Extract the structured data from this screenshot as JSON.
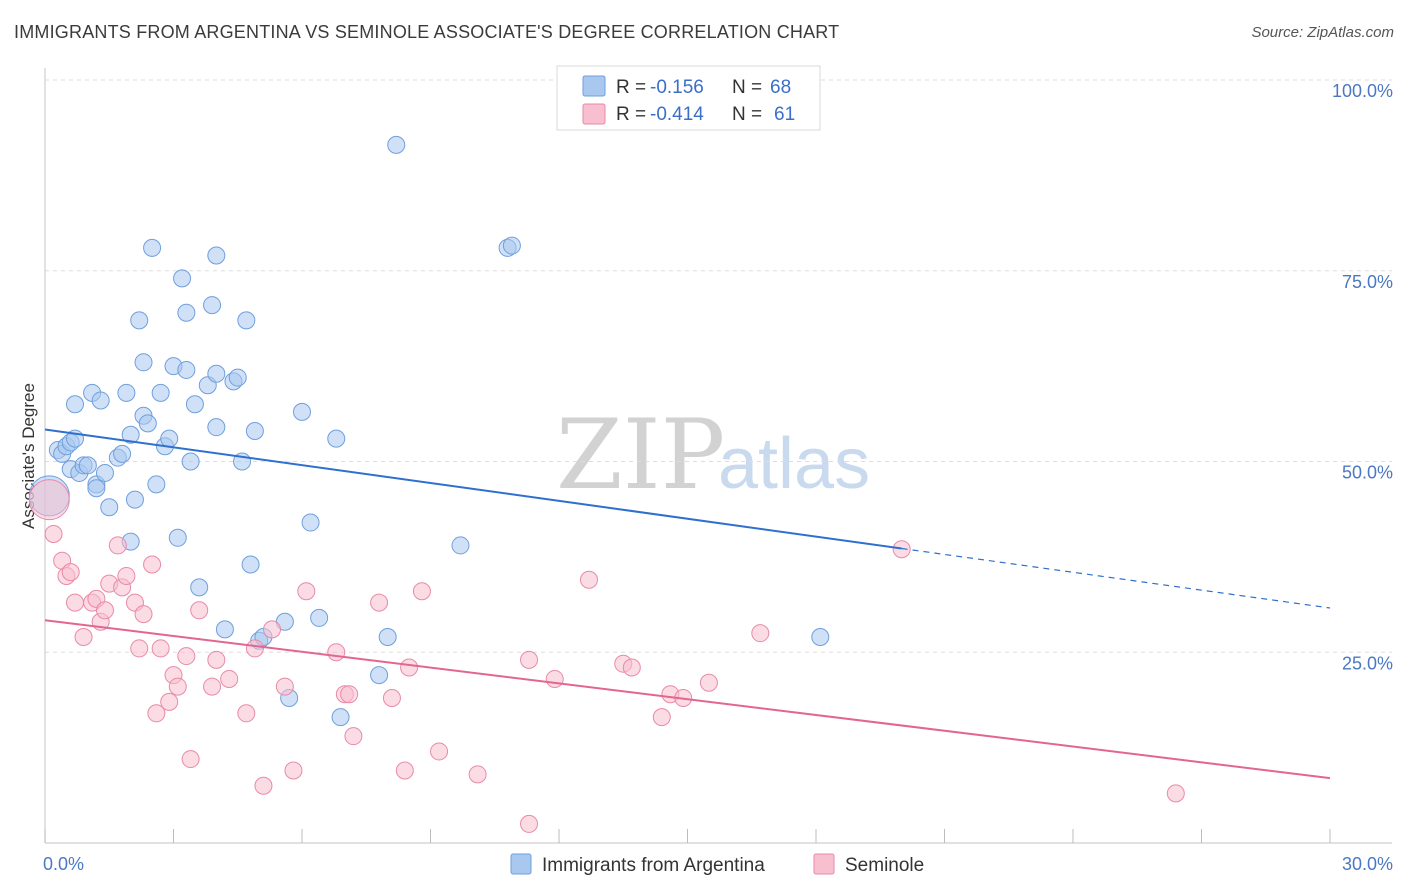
{
  "header": {
    "title": "IMMIGRANTS FROM ARGENTINA VS SEMINOLE ASSOCIATE'S DEGREE CORRELATION CHART",
    "source": "Source: ZipAtlas.com"
  },
  "watermark": {
    "zip": "ZIP",
    "atlas": "atlas"
  },
  "colors": {
    "blue_fill": "#a9c8f0",
    "blue_stroke": "#6f9fdc",
    "blue_line": "#2f6fce",
    "pink_fill": "#f7bfd0",
    "pink_stroke": "#e88aa8",
    "pink_line": "#e2668f",
    "grid": "#dddddd",
    "axis_text": "#4a78c2"
  },
  "legend": {
    "rows": [
      {
        "r_label": "R =",
        "r_value": "-0.156",
        "n_label": "N =",
        "n_value": "68"
      },
      {
        "r_label": "R =",
        "r_value": "-0.414",
        "n_label": "N =",
        "n_value": "61"
      }
    ]
  },
  "bottom_legend": {
    "series1": "Immigrants from Argentina",
    "series2": "Seminole"
  },
  "chart_data": {
    "type": "scatter",
    "title": "IMMIGRANTS FROM ARGENTINA VS SEMINOLE ASSOCIATE'S DEGREE CORRELATION CHART",
    "xlabel": "",
    "ylabel": "Associate's Degree",
    "xlim": [
      0,
      30
    ],
    "ylim": [
      0,
      100
    ],
    "x_tick_labels": [
      "0.0%",
      "30.0%"
    ],
    "y_ticks": [
      25,
      50,
      75,
      100
    ],
    "y_tick_labels": [
      "25.0%",
      "50.0%",
      "75.0%",
      "100.0%"
    ],
    "grid": true,
    "series": [
      {
        "name": "Immigrants from Argentina",
        "R": -0.156,
        "N": 68,
        "trend": {
          "x0": 0,
          "y0": 54.2,
          "x1": 30,
          "y1": 30.8,
          "solid_until": 20
        },
        "points": [
          [
            0.1,
            45.5,
            "big"
          ],
          [
            0.3,
            51.5
          ],
          [
            0.4,
            51.0
          ],
          [
            0.5,
            52.0
          ],
          [
            0.6,
            52.5
          ],
          [
            0.6,
            49.0
          ],
          [
            0.7,
            53.0
          ],
          [
            0.7,
            57.5
          ],
          [
            0.8,
            48.5
          ],
          [
            0.9,
            49.5
          ],
          [
            1.0,
            49.5
          ],
          [
            1.1,
            59.0
          ],
          [
            1.2,
            47.0
          ],
          [
            1.2,
            46.5
          ],
          [
            1.3,
            58.0
          ],
          [
            1.4,
            48.5
          ],
          [
            1.5,
            44.0
          ],
          [
            1.7,
            50.5
          ],
          [
            1.8,
            51.0
          ],
          [
            1.9,
            59.0
          ],
          [
            2.0,
            53.5
          ],
          [
            2.0,
            39.5
          ],
          [
            2.1,
            45.0
          ],
          [
            2.2,
            68.5
          ],
          [
            2.3,
            63.0
          ],
          [
            2.3,
            56.0
          ],
          [
            2.4,
            55.0
          ],
          [
            2.5,
            78.0
          ],
          [
            2.6,
            47.0
          ],
          [
            2.7,
            59.0
          ],
          [
            2.8,
            52.0
          ],
          [
            2.9,
            53.0
          ],
          [
            3.0,
            62.5
          ],
          [
            3.1,
            40.0
          ],
          [
            3.2,
            74.0
          ],
          [
            3.3,
            62.0
          ],
          [
            3.3,
            69.5
          ],
          [
            3.4,
            50.0
          ],
          [
            3.5,
            57.5
          ],
          [
            3.6,
            33.5
          ],
          [
            3.8,
            60.0
          ],
          [
            3.9,
            70.5
          ],
          [
            4.0,
            54.5
          ],
          [
            4.0,
            61.5
          ],
          [
            4.0,
            77.0
          ],
          [
            4.2,
            28.0
          ],
          [
            4.4,
            60.5
          ],
          [
            4.5,
            61.0
          ],
          [
            4.6,
            50.0
          ],
          [
            4.7,
            68.5
          ],
          [
            4.8,
            36.5
          ],
          [
            4.9,
            54.0
          ],
          [
            5.0,
            26.5
          ],
          [
            5.1,
            27.0
          ],
          [
            5.6,
            29.0
          ],
          [
            5.7,
            19.0
          ],
          [
            6.0,
            56.5
          ],
          [
            6.2,
            42.0
          ],
          [
            6.4,
            29.5
          ],
          [
            6.9,
            16.5
          ],
          [
            6.8,
            53.0
          ],
          [
            7.8,
            22.0
          ],
          [
            8.0,
            27.0
          ],
          [
            8.2,
            91.5
          ],
          [
            9.7,
            39.0
          ],
          [
            10.8,
            78.0
          ],
          [
            10.9,
            78.3
          ],
          [
            18.1,
            27.0
          ]
        ]
      },
      {
        "name": "Seminole",
        "R": -0.414,
        "N": 61,
        "trend": {
          "x0": 0,
          "y0": 29.2,
          "x1": 30,
          "y1": 8.5
        },
        "points": [
          [
            0.1,
            45.0,
            "big"
          ],
          [
            0.2,
            40.5
          ],
          [
            0.4,
            37.0
          ],
          [
            0.5,
            35.0
          ],
          [
            0.6,
            35.5
          ],
          [
            0.7,
            31.5
          ],
          [
            0.9,
            27.0
          ],
          [
            1.1,
            31.5
          ],
          [
            1.2,
            32.0
          ],
          [
            1.3,
            29.0
          ],
          [
            1.4,
            30.5
          ],
          [
            1.5,
            34.0
          ],
          [
            1.7,
            39.0
          ],
          [
            1.8,
            33.5
          ],
          [
            1.9,
            35.0
          ],
          [
            2.1,
            31.5
          ],
          [
            2.2,
            25.5
          ],
          [
            2.3,
            30.0
          ],
          [
            2.5,
            36.5
          ],
          [
            2.6,
            17.0
          ],
          [
            2.7,
            25.5
          ],
          [
            2.9,
            18.5
          ],
          [
            3.0,
            22.0
          ],
          [
            3.1,
            20.5
          ],
          [
            3.3,
            24.5
          ],
          [
            3.4,
            11.0
          ],
          [
            3.6,
            30.5
          ],
          [
            3.9,
            20.5
          ],
          [
            4.0,
            24.0
          ],
          [
            4.3,
            21.5
          ],
          [
            4.7,
            17.0
          ],
          [
            4.9,
            25.5
          ],
          [
            5.1,
            7.5
          ],
          [
            5.3,
            28.0
          ],
          [
            5.6,
            20.5
          ],
          [
            5.8,
            9.5
          ],
          [
            6.1,
            33.0
          ],
          [
            6.8,
            25.0
          ],
          [
            7.0,
            19.5
          ],
          [
            7.1,
            19.5
          ],
          [
            7.2,
            14.0
          ],
          [
            7.8,
            31.5
          ],
          [
            8.1,
            19.0
          ],
          [
            8.4,
            9.5
          ],
          [
            8.5,
            23.0
          ],
          [
            8.8,
            33.0
          ],
          [
            9.2,
            12.0
          ],
          [
            10.1,
            9.0
          ],
          [
            11.3,
            2.5
          ],
          [
            11.3,
            24.0
          ],
          [
            11.9,
            21.5
          ],
          [
            12.7,
            34.5
          ],
          [
            13.5,
            23.5
          ],
          [
            13.7,
            23.0
          ],
          [
            14.4,
            16.5
          ],
          [
            14.6,
            19.5
          ],
          [
            14.9,
            19.0
          ],
          [
            15.5,
            21.0
          ],
          [
            16.7,
            27.5
          ],
          [
            20.0,
            38.5
          ],
          [
            26.4,
            6.5
          ]
        ]
      }
    ]
  }
}
